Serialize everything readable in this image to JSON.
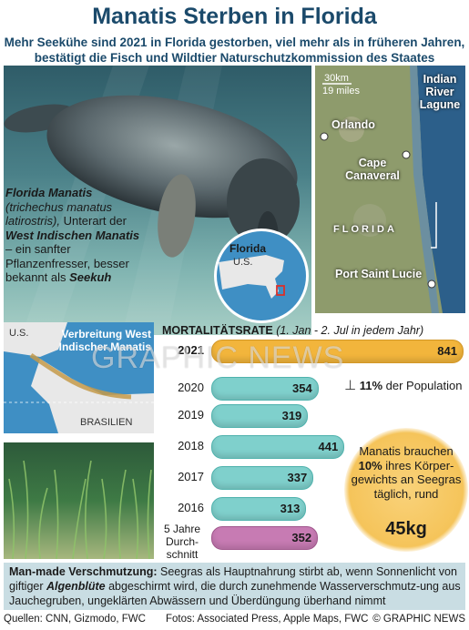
{
  "header": {
    "title": "Manatis Sterben in Florida",
    "subtitle": "Mehr Seekühe sind 2021 in Florida gestorben, viel mehr als in früheren Jahren, bestätigt die Fisch und Wildtier Naturschutzkommission des Staates"
  },
  "species": {
    "name": "Florida Manatis",
    "latin": "(trichechus manatus latirostris),",
    "desc1": "Unterart der",
    "parent": "West Indischen Manatis",
    "desc2": " – ein sanfter Pflanzenfresser, besser bekannt als",
    "common": "Seekuh"
  },
  "locator": {
    "state": "Florida",
    "country": "U.S."
  },
  "map": {
    "scale_km": "30km",
    "scale_mi": "19 miles",
    "lagoon": "Indian River Lagune",
    "state_label": "FLORIDA",
    "places": [
      "Orlando",
      "Cape Canaveral",
      "Port Saint Lucie"
    ]
  },
  "range_map": {
    "title": "Verbreitung West Indischer Manatis",
    "us": "U.S.",
    "brazil": "BRASILIEN"
  },
  "chart_data": {
    "type": "bar",
    "title": "MORTALITÄTSRATE",
    "subtitle": "(1. Jan - 2. Jul  in jedem Jahr)",
    "categories": [
      "2021",
      "2020",
      "2019",
      "2018",
      "2017",
      "2016",
      "5 Jahre Durch-schnitt"
    ],
    "values": [
      841,
      354,
      319,
      441,
      337,
      313,
      352
    ],
    "xlim": [
      0,
      841
    ],
    "colors": {
      "highlight": "#f2b53c",
      "normal": "#7fd0cc",
      "average": "#c77bb3"
    }
  },
  "notes": {
    "population_pct": "11%",
    "population_text": " der Population"
  },
  "bubble": {
    "text": "Manatis brauchen",
    "pct": "10%",
    "text2": " ihres Körper-gewichts an Seegras täglich, rund",
    "amount": "45kg"
  },
  "footer": {
    "lead": "Man-made Verschmutzung:",
    "text1": " Seegras als Hauptnahrung stirbt ab, wenn Sonnenlicht von giftiger ",
    "algae": "Algenblüte",
    "text2": " abgeschirmt wird, die durch zunehmende Wasserverschmutz-ung aus Jauchegruben, ungeklärten Abwässern und Überdüngung überhand nimmt"
  },
  "credits": {
    "sources": "Quellen: CNN, Gizmodo, FWC",
    "photos": "Fotos: Associated Press, Apple Maps, FWC",
    "brand": "© GRAPHIC NEWS"
  },
  "watermark": "GRAPHIC NEWS"
}
